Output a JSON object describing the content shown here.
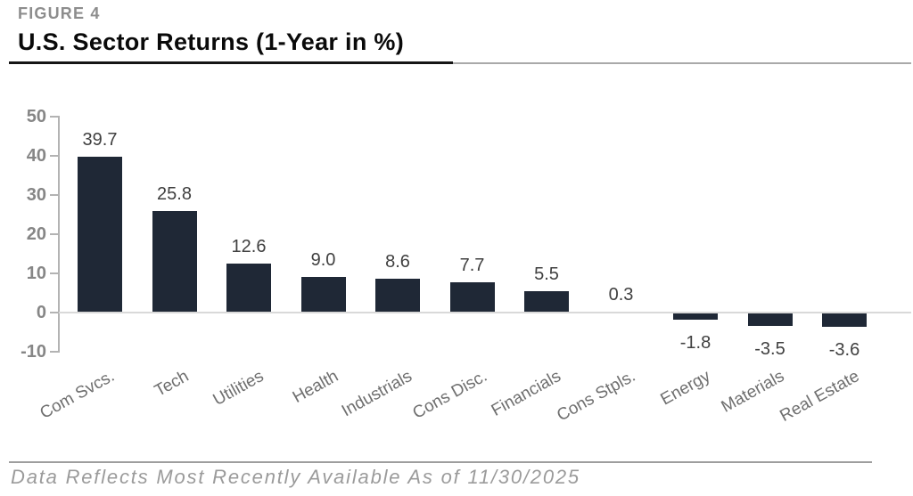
{
  "header": {
    "figure_label": "FIGURE 4",
    "title": "U.S. Sector Returns (1-Year in %)"
  },
  "footer": {
    "note": "Data Reflects Most Recently Available As of 11/30/2025"
  },
  "chart_data": {
    "type": "bar",
    "title": "U.S. Sector Returns (1-Year in %)",
    "categories": [
      "Com Svcs.",
      "Tech",
      "Utilities",
      "Health",
      "Industrials",
      "Cons Disc.",
      "Financials",
      "Cons Stpls.",
      "Energy",
      "Materials",
      "Real Estate"
    ],
    "values": [
      39.7,
      25.8,
      12.6,
      9.0,
      8.6,
      7.7,
      5.5,
      0.3,
      -1.8,
      -3.5,
      -3.6
    ],
    "value_labels": [
      "39.7",
      "25.8",
      "12.6",
      "9.0",
      "8.6",
      "7.7",
      "5.5",
      "0.3",
      "-1.8",
      "-3.5",
      "-3.6"
    ],
    "yticks": [
      50,
      40,
      30,
      20,
      10,
      0,
      -10
    ],
    "ylim": [
      -10,
      50
    ],
    "xlabel": "",
    "ylabel": "",
    "grid": "zero-line-only",
    "legend": "none",
    "colors": {
      "bar": "#1f2836",
      "value_label": "#404040",
      "axis_tick_label": "#868686",
      "axis_line": "#b3b3b3",
      "zero_line": "#d9d9d9",
      "category_label": "#6f6f6f"
    }
  }
}
